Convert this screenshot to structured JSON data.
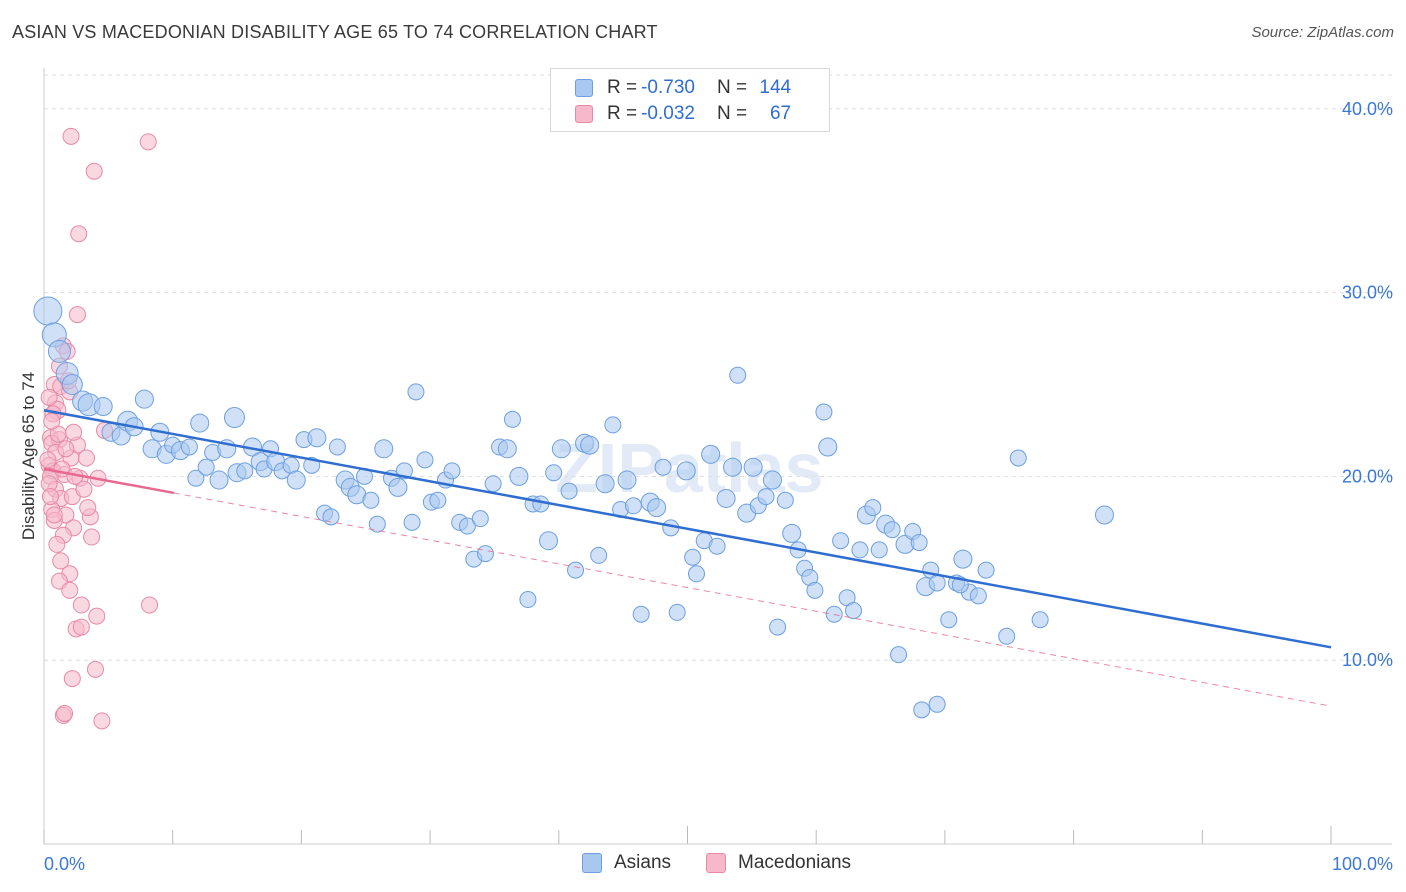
{
  "title": "ASIAN VS MACEDONIAN DISABILITY AGE 65 TO 74 CORRELATION CHART",
  "source": "Source: ZipAtlas.com",
  "watermark": "ZIPatlas",
  "legend_top": [
    {
      "r_label": "R = ",
      "r_value": "-0.730",
      "n_label": "N = ",
      "n_value": "144"
    },
    {
      "r_label": "R = ",
      "r_value": "-0.032",
      "n_label": "N = ",
      "n_value": "67"
    }
  ],
  "legend_bottom": [
    "Asians",
    "Macedonians"
  ],
  "colors": {
    "asian_fill": "#a9c8f0",
    "asian_stroke": "#6d9fe0",
    "asian_line": "#2f6ed0",
    "maced_fill": "#f6b8ca",
    "maced_stroke": "#e88aa6",
    "maced_line": "#e8688f",
    "grid": "#dddddd",
    "tick_text": "#3a78d4"
  },
  "chart_data": {
    "type": "scatter",
    "title": "ASIAN VS MACEDONIAN DISABILITY AGE 65 TO 74 CORRELATION CHART",
    "xlabel": "",
    "ylabel": "Disability Age 65 to 74",
    "xlim": [
      0,
      100
    ],
    "ylim": [
      0,
      42
    ],
    "x_tick_labels": [
      "0.0%",
      "100.0%"
    ],
    "y_ticks": [
      10,
      20,
      30,
      40
    ],
    "y_tick_labels": [
      "10.0%",
      "20.0%",
      "30.0%",
      "40.0%"
    ],
    "grid": "horizontal dashed",
    "legend_position": "top-center",
    "series": [
      {
        "name": "Asians",
        "R": -0.73,
        "N": 144,
        "trend": {
          "x": [
            0,
            100
          ],
          "y": [
            23.6,
            10.7
          ],
          "style": "solid"
        },
        "points": [
          [
            0.3,
            29.0,
            14
          ],
          [
            0.8,
            27.7,
            12
          ],
          [
            1.2,
            26.8,
            11
          ],
          [
            1.8,
            25.6,
            11
          ],
          [
            2.2,
            25.0,
            10
          ],
          [
            3.0,
            24.1,
            10
          ],
          [
            3.5,
            23.9,
            11
          ],
          [
            4.6,
            23.8,
            9
          ],
          [
            5.2,
            22.4,
            9
          ],
          [
            6.0,
            22.2,
            9
          ],
          [
            6.5,
            23.0,
            10
          ],
          [
            7.0,
            22.7,
            9
          ],
          [
            7.8,
            24.2,
            9
          ],
          [
            8.4,
            21.5,
            9
          ],
          [
            9.0,
            22.4,
            9
          ],
          [
            9.5,
            21.2,
            9
          ],
          [
            10.0,
            21.7,
            8
          ],
          [
            10.6,
            21.4,
            9
          ],
          [
            11.3,
            21.6,
            8
          ],
          [
            11.8,
            19.9,
            8
          ],
          [
            12.1,
            22.9,
            9
          ],
          [
            12.6,
            20.5,
            8
          ],
          [
            13.1,
            21.3,
            8
          ],
          [
            13.6,
            19.8,
            9
          ],
          [
            14.2,
            21.5,
            9
          ],
          [
            14.8,
            23.2,
            10
          ],
          [
            15.0,
            20.2,
            9
          ],
          [
            15.6,
            20.3,
            8
          ],
          [
            16.2,
            21.6,
            9
          ],
          [
            16.8,
            20.8,
            9
          ],
          [
            17.1,
            20.4,
            8
          ],
          [
            17.6,
            21.5,
            8
          ],
          [
            18.0,
            20.8,
            9
          ],
          [
            18.5,
            20.3,
            8
          ],
          [
            19.2,
            20.6,
            8
          ],
          [
            19.6,
            19.8,
            9
          ],
          [
            20.2,
            22.0,
            8
          ],
          [
            20.8,
            20.6,
            8
          ],
          [
            21.2,
            22.1,
            9
          ],
          [
            21.8,
            18.0,
            8
          ],
          [
            22.3,
            17.8,
            8
          ],
          [
            22.8,
            21.6,
            8
          ],
          [
            23.4,
            19.8,
            9
          ],
          [
            23.8,
            19.4,
            9
          ],
          [
            24.3,
            19.0,
            9
          ],
          [
            24.9,
            20.0,
            8
          ],
          [
            25.4,
            18.7,
            8
          ],
          [
            25.9,
            17.4,
            8
          ],
          [
            26.4,
            21.5,
            9
          ],
          [
            27.0,
            19.9,
            8
          ],
          [
            27.5,
            19.4,
            9
          ],
          [
            28.0,
            20.3,
            8
          ],
          [
            28.6,
            17.5,
            8
          ],
          [
            28.9,
            24.6,
            8
          ],
          [
            29.6,
            20.9,
            8
          ],
          [
            30.1,
            18.6,
            8
          ],
          [
            30.6,
            18.7,
            8
          ],
          [
            31.2,
            19.8,
            8
          ],
          [
            31.7,
            20.3,
            8
          ],
          [
            32.3,
            17.5,
            8
          ],
          [
            32.9,
            17.3,
            8
          ],
          [
            33.4,
            15.5,
            8
          ],
          [
            33.9,
            17.7,
            8
          ],
          [
            34.3,
            15.8,
            8
          ],
          [
            34.9,
            19.6,
            8
          ],
          [
            35.4,
            21.6,
            8
          ],
          [
            36.0,
            21.5,
            9
          ],
          [
            36.4,
            23.1,
            8
          ],
          [
            36.9,
            20.0,
            9
          ],
          [
            37.6,
            13.3,
            8
          ],
          [
            38.0,
            18.5,
            8
          ],
          [
            38.6,
            18.5,
            8
          ],
          [
            39.2,
            16.5,
            9
          ],
          [
            39.6,
            20.2,
            8
          ],
          [
            40.2,
            21.5,
            9
          ],
          [
            40.8,
            19.2,
            8
          ],
          [
            41.3,
            14.9,
            8
          ],
          [
            42.0,
            21.8,
            9
          ],
          [
            42.4,
            21.7,
            9
          ],
          [
            43.1,
            15.7,
            8
          ],
          [
            43.6,
            19.6,
            9
          ],
          [
            44.2,
            22.8,
            8
          ],
          [
            44.8,
            18.2,
            8
          ],
          [
            45.3,
            19.8,
            9
          ],
          [
            45.8,
            18.4,
            8
          ],
          [
            46.4,
            12.5,
            8
          ],
          [
            47.1,
            18.6,
            9
          ],
          [
            47.6,
            18.3,
            9
          ],
          [
            48.1,
            20.5,
            8
          ],
          [
            48.7,
            17.2,
            8
          ],
          [
            49.2,
            12.6,
            8
          ],
          [
            49.9,
            20.3,
            9
          ],
          [
            50.4,
            15.6,
            8
          ],
          [
            50.7,
            14.7,
            8
          ],
          [
            51.3,
            16.5,
            8
          ],
          [
            51.8,
            21.2,
            9
          ],
          [
            52.3,
            16.2,
            8
          ],
          [
            53.0,
            18.8,
            9
          ],
          [
            53.5,
            20.5,
            9
          ],
          [
            53.9,
            25.5,
            8
          ],
          [
            54.6,
            18.0,
            9
          ],
          [
            55.1,
            20.5,
            9
          ],
          [
            55.5,
            18.4,
            8
          ],
          [
            56.1,
            18.9,
            8
          ],
          [
            56.6,
            19.8,
            9
          ],
          [
            57.0,
            11.8,
            8
          ],
          [
            57.6,
            18.7,
            8
          ],
          [
            58.1,
            16.9,
            9
          ],
          [
            58.6,
            16.0,
            8
          ],
          [
            59.1,
            15.0,
            8
          ],
          [
            59.5,
            14.5,
            8
          ],
          [
            59.9,
            13.8,
            8
          ],
          [
            60.6,
            23.5,
            8
          ],
          [
            60.9,
            21.6,
            9
          ],
          [
            61.4,
            12.5,
            8
          ],
          [
            61.9,
            16.5,
            8
          ],
          [
            62.4,
            13.4,
            8
          ],
          [
            62.9,
            12.7,
            8
          ],
          [
            63.4,
            16.0,
            8
          ],
          [
            63.9,
            17.9,
            9
          ],
          [
            64.4,
            18.3,
            8
          ],
          [
            64.9,
            16.0,
            8
          ],
          [
            65.4,
            17.4,
            9
          ],
          [
            65.9,
            17.1,
            8
          ],
          [
            66.4,
            10.3,
            8
          ],
          [
            66.9,
            16.3,
            9
          ],
          [
            67.5,
            17.0,
            8
          ],
          [
            68.0,
            16.4,
            8
          ],
          [
            68.5,
            14.0,
            9
          ],
          [
            68.9,
            14.9,
            8
          ],
          [
            69.4,
            14.2,
            8
          ],
          [
            70.3,
            12.2,
            8
          ],
          [
            70.9,
            14.2,
            8
          ],
          [
            71.4,
            15.5,
            9
          ],
          [
            71.9,
            13.7,
            8
          ],
          [
            72.6,
            13.5,
            8
          ],
          [
            73.2,
            14.9,
            8
          ],
          [
            74.8,
            11.3,
            8
          ],
          [
            75.7,
            21.0,
            8
          ],
          [
            77.4,
            12.2,
            8
          ],
          [
            82.4,
            17.9,
            9
          ],
          [
            68.2,
            7.3,
            8
          ],
          [
            69.4,
            7.6,
            8
          ],
          [
            71.2,
            14.1,
            8
          ]
        ]
      },
      {
        "name": "Macedonians",
        "R": -0.032,
        "N": 67,
        "trend": {
          "x": [
            0,
            10.1
          ],
          "y": [
            20.4,
            19.1
          ],
          "style": "solid"
        },
        "trend_extended": {
          "x": [
            0,
            100
          ],
          "y": [
            20.4,
            7.5
          ],
          "style": "dashed"
        },
        "points": [
          [
            2.1,
            38.5,
            8
          ],
          [
            8.1,
            38.2,
            8
          ],
          [
            3.9,
            36.6,
            8
          ],
          [
            2.7,
            33.2,
            8
          ],
          [
            2.6,
            28.8,
            8
          ],
          [
            1.5,
            27.1,
            8
          ],
          [
            1.8,
            26.8,
            8
          ],
          [
            0.8,
            25.0,
            8
          ],
          [
            1.3,
            24.9,
            8
          ],
          [
            0.9,
            24.0,
            8
          ],
          [
            2.0,
            24.6,
            8
          ],
          [
            1.0,
            23.6,
            9
          ],
          [
            0.7,
            23.4,
            8
          ],
          [
            4.7,
            22.5,
            8
          ],
          [
            0.5,
            22.1,
            8
          ],
          [
            1.2,
            22.0,
            8
          ],
          [
            2.6,
            21.7,
            8
          ],
          [
            0.6,
            21.8,
            8
          ],
          [
            0.9,
            21.3,
            8
          ],
          [
            2.1,
            21.0,
            8
          ],
          [
            3.3,
            21.0,
            8
          ],
          [
            0.4,
            20.6,
            8
          ],
          [
            0.7,
            20.3,
            8
          ],
          [
            1.6,
            20.1,
            8
          ],
          [
            2.8,
            19.9,
            8
          ],
          [
            0.5,
            20.0,
            8
          ],
          [
            4.2,
            19.9,
            8
          ],
          [
            0.9,
            19.3,
            8
          ],
          [
            1.3,
            18.8,
            8
          ],
          [
            2.2,
            18.9,
            8
          ],
          [
            0.6,
            18.2,
            8
          ],
          [
            1.7,
            17.9,
            8
          ],
          [
            0.8,
            17.6,
            8
          ],
          [
            3.6,
            17.8,
            8
          ],
          [
            2.3,
            17.2,
            8
          ],
          [
            1.5,
            16.8,
            8
          ],
          [
            3.7,
            16.7,
            8
          ],
          [
            1.3,
            15.4,
            8
          ],
          [
            2.0,
            14.7,
            8
          ],
          [
            1.2,
            14.3,
            8
          ],
          [
            2.0,
            13.8,
            8
          ],
          [
            2.9,
            13.0,
            8
          ],
          [
            8.2,
            13.0,
            8
          ],
          [
            4.1,
            12.4,
            8
          ],
          [
            2.5,
            11.7,
            8
          ],
          [
            2.9,
            11.8,
            8
          ],
          [
            2.2,
            9.0,
            8
          ],
          [
            4.0,
            9.5,
            8
          ],
          [
            1.5,
            7.0,
            8
          ],
          [
            1.6,
            7.1,
            8
          ],
          [
            4.5,
            6.7,
            8
          ],
          [
            0.3,
            20.9,
            8
          ],
          [
            1.1,
            22.3,
            8
          ],
          [
            0.4,
            19.6,
            8
          ],
          [
            1.9,
            25.2,
            8
          ],
          [
            0.5,
            18.9,
            8
          ],
          [
            1.4,
            20.4,
            8
          ],
          [
            2.4,
            20.0,
            8
          ],
          [
            0.6,
            23.0,
            8
          ],
          [
            1.0,
            16.3,
            8
          ],
          [
            3.1,
            19.3,
            8
          ],
          [
            0.8,
            17.9,
            8
          ],
          [
            1.7,
            21.5,
            8
          ],
          [
            2.3,
            22.4,
            8
          ],
          [
            0.4,
            24.3,
            8
          ],
          [
            1.2,
            26.0,
            8
          ],
          [
            3.4,
            18.3,
            8
          ]
        ]
      }
    ]
  }
}
